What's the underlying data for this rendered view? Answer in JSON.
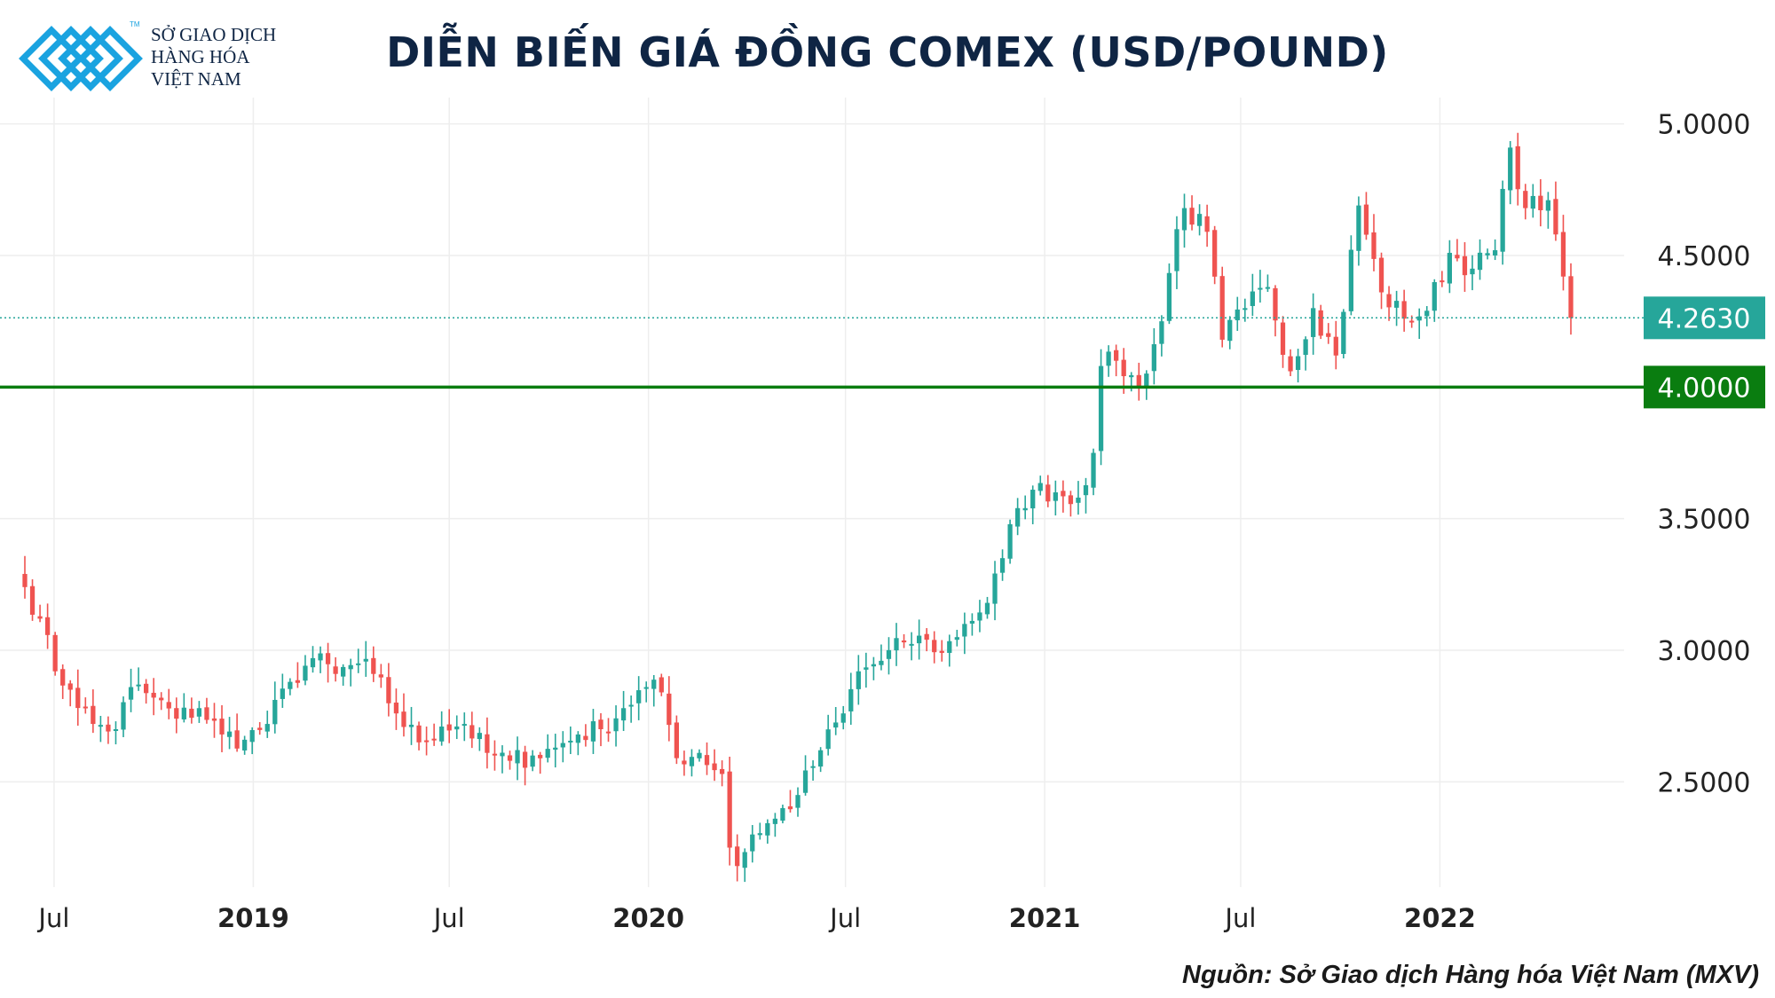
{
  "logo": {
    "line1": "SỞ GIAO DỊCH",
    "line2": "HÀNG HÓA",
    "line3": "VIỆT NAM",
    "tm": "TM",
    "color": "#1aa3e0"
  },
  "title": "DIỄN BIẾN GIÁ ĐỒNG COMEX (USD/POUND)",
  "source": "Nguồn: Sở Giao dịch Hàng hóa Việt Nam (MXV)",
  "chart_data": {
    "type": "candlestick",
    "frequency": "weekly",
    "ylim": [
      2.1,
      5.1
    ],
    "yticks": [
      2.5,
      3.0,
      3.5,
      4.0,
      4.5,
      5.0
    ],
    "ytick_labels": [
      "2.5000",
      "3.0000",
      "3.5000",
      "4.0000",
      "4.5000",
      "5.0000"
    ],
    "x_range": [
      "2018-06-04",
      "2022-05-02"
    ],
    "xticks": [
      {
        "date": "2018-07-01",
        "label": "Jul",
        "bold": false
      },
      {
        "date": "2019-01-01",
        "label": "2019",
        "bold": true
      },
      {
        "date": "2019-07-01",
        "label": "Jul",
        "bold": false
      },
      {
        "date": "2020-01-01",
        "label": "2020",
        "bold": true
      },
      {
        "date": "2020-07-01",
        "label": "Jul",
        "bold": false
      },
      {
        "date": "2021-01-01",
        "label": "2021",
        "bold": true
      },
      {
        "date": "2021-07-01",
        "label": "Jul",
        "bold": false
      },
      {
        "date": "2022-01-01",
        "label": "2022",
        "bold": true
      }
    ],
    "grid": true,
    "up_color": "#26a69a",
    "down_color": "#ef5350",
    "horizontal_line": {
      "value": 4.0,
      "label": "4.0000",
      "color": "#0a7d10"
    },
    "last_price": {
      "value": 4.263,
      "label": "4.2630",
      "color": "#26a69a"
    },
    "close_path": [
      [
        "2018-06-04",
        3.24
      ],
      [
        "2018-06-18",
        3.12
      ],
      [
        "2018-07-02",
        2.92
      ],
      [
        "2018-07-16",
        2.85
      ],
      [
        "2018-08-06",
        2.72
      ],
      [
        "2018-08-27",
        2.7
      ],
      [
        "2018-09-10",
        2.86
      ],
      [
        "2018-10-01",
        2.82
      ],
      [
        "2018-10-22",
        2.74
      ],
      [
        "2018-11-12",
        2.78
      ],
      [
        "2018-12-03",
        2.68
      ],
      [
        "2018-12-24",
        2.66
      ],
      [
        "2019-01-14",
        2.72
      ],
      [
        "2019-02-04",
        2.88
      ],
      [
        "2019-02-25",
        2.97
      ],
      [
        "2019-03-18",
        2.91
      ],
      [
        "2019-04-08",
        2.95
      ],
      [
        "2019-04-22",
        2.91
      ],
      [
        "2019-05-13",
        2.76
      ],
      [
        "2019-06-03",
        2.65
      ],
      [
        "2019-06-24",
        2.71
      ],
      [
        "2019-07-15",
        2.72
      ],
      [
        "2019-08-05",
        2.61
      ],
      [
        "2019-08-26",
        2.58
      ],
      [
        "2019-09-16",
        2.6
      ],
      [
        "2019-10-07",
        2.63
      ],
      [
        "2019-10-28",
        2.68
      ],
      [
        "2019-11-18",
        2.7
      ],
      [
        "2019-12-09",
        2.78
      ],
      [
        "2019-12-30",
        2.86
      ],
      [
        "2020-01-13",
        2.84
      ],
      [
        "2020-01-27",
        2.59
      ],
      [
        "2020-02-17",
        2.61
      ],
      [
        "2020-03-09",
        2.53
      ],
      [
        "2020-03-16",
        2.25
      ],
      [
        "2020-03-23",
        2.18
      ],
      [
        "2020-04-06",
        2.3
      ],
      [
        "2020-04-27",
        2.36
      ],
      [
        "2020-05-18",
        2.45
      ],
      [
        "2020-06-08",
        2.62
      ],
      [
        "2020-06-29",
        2.76
      ],
      [
        "2020-07-13",
        2.92
      ],
      [
        "2020-08-03",
        2.96
      ],
      [
        "2020-08-24",
        3.03
      ],
      [
        "2020-09-14",
        3.04
      ],
      [
        "2020-09-28",
        2.99
      ],
      [
        "2020-10-19",
        3.1
      ],
      [
        "2020-11-09",
        3.18
      ],
      [
        "2020-11-23",
        3.35
      ],
      [
        "2020-12-07",
        3.54
      ],
      [
        "2020-12-21",
        3.61
      ],
      [
        "2021-01-11",
        3.6
      ],
      [
        "2021-02-01",
        3.58
      ],
      [
        "2021-02-15",
        3.75
      ],
      [
        "2021-02-22",
        4.08
      ],
      [
        "2021-03-08",
        4.1
      ],
      [
        "2021-03-29",
        4.0
      ],
      [
        "2021-04-19",
        4.25
      ],
      [
        "2021-05-03",
        4.6
      ],
      [
        "2021-05-10",
        4.68
      ],
      [
        "2021-05-31",
        4.59
      ],
      [
        "2021-06-14",
        4.18
      ],
      [
        "2021-07-05",
        4.3
      ],
      [
        "2021-07-26",
        4.38
      ],
      [
        "2021-08-16",
        4.06
      ],
      [
        "2021-09-06",
        4.3
      ],
      [
        "2021-09-27",
        4.12
      ],
      [
        "2021-10-18",
        4.69
      ],
      [
        "2021-11-08",
        4.36
      ],
      [
        "2021-11-29",
        4.26
      ],
      [
        "2021-12-20",
        4.29
      ],
      [
        "2022-01-10",
        4.51
      ],
      [
        "2022-01-31",
        4.45
      ],
      [
        "2022-02-21",
        4.52
      ],
      [
        "2022-03-07",
        4.91
      ],
      [
        "2022-03-21",
        4.68
      ],
      [
        "2022-04-11",
        4.71
      ],
      [
        "2022-04-18",
        4.58
      ],
      [
        "2022-04-25",
        4.42
      ],
      [
        "2022-05-02",
        4.263
      ]
    ],
    "price_range": {
      "low": 2.16,
      "high": 5.01
    },
    "notes": "Weekly OHLC candles, ~205 weeks; key lows ~2.16 (Mar 2020), highs ~5.01 (Mar 2022)"
  }
}
